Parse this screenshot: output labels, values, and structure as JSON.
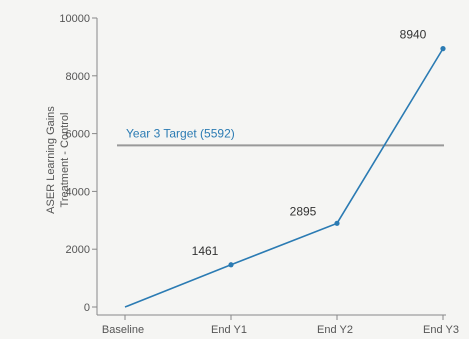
{
  "chart_data": {
    "type": "line",
    "categories": [
      "Baseline",
      "End Y1",
      "End Y2",
      "End Y3"
    ],
    "series": [
      {
        "values": [
          0,
          1461,
          2895,
          8940
        ]
      }
    ],
    "data_labels": [
      "",
      "1461",
      "2895",
      "8940"
    ],
    "ylabel_line1": "ASER Learning Gains",
    "ylabel_line2": "Treatment - Control",
    "ylim": [
      0,
      10000
    ],
    "yticks": [
      0,
      2000,
      4000,
      6000,
      8000,
      10000
    ],
    "ytick_labels": [
      "0",
      "2000",
      "4000",
      "6000",
      "8000",
      "10000"
    ],
    "target": {
      "value": 5592,
      "label": "Year 3 Target (5592)"
    },
    "grid": false,
    "colors": {
      "line": "#2b7bb3",
      "target": "#999999",
      "target_text": "#2b7bb3",
      "axis": "#888888"
    }
  }
}
